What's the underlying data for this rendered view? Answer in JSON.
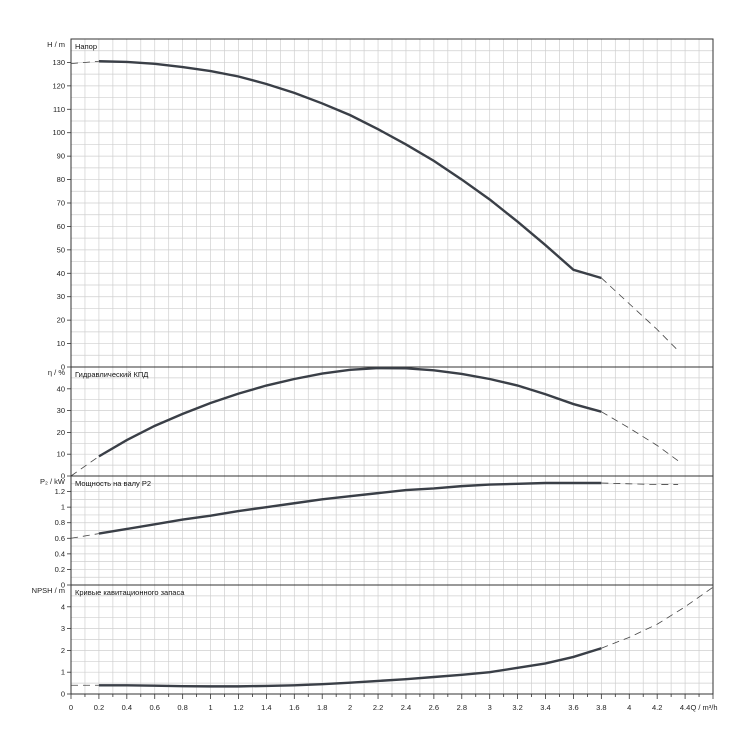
{
  "x_axis": {
    "label": "Q / m³/h"
  },
  "chart_data": [
    {
      "type": "line",
      "title": "Напор",
      "ylabel": "H / m",
      "xlim": [
        0,
        4.6
      ],
      "ylim": [
        0,
        140
      ],
      "xticks": [
        0,
        0.2,
        0.4,
        0.6,
        0.8,
        1,
        1.2,
        1.4,
        1.6,
        1.8,
        2,
        2.2,
        2.4,
        2.6,
        2.8,
        3,
        3.2,
        3.4,
        3.6,
        3.8,
        4,
        4.2,
        4.4
      ],
      "yticks": [
        0,
        10,
        20,
        30,
        40,
        50,
        60,
        70,
        80,
        90,
        100,
        110,
        120,
        130
      ],
      "grid": true,
      "series": [
        {
          "style": "solid",
          "x": [
            0.2,
            0.4,
            0.6,
            0.8,
            1.0,
            1.2,
            1.4,
            1.6,
            1.8,
            2.0,
            2.2,
            2.4,
            2.6,
            2.8,
            3.0,
            3.2,
            3.4,
            3.6,
            3.8
          ],
          "y": [
            130.5,
            130.2,
            129.4,
            128.0,
            126.3,
            124.0,
            120.8,
            117.0,
            112.5,
            107.5,
            101.5,
            95.0,
            88.0,
            80.0,
            71.5,
            62.0,
            52.0,
            41.5,
            38.0
          ]
        },
        {
          "style": "dashed",
          "x": [
            0.0,
            0.2
          ],
          "y": [
            129.5,
            130.5
          ]
        },
        {
          "style": "dashed",
          "x": [
            3.8,
            4.0,
            4.2,
            4.35
          ],
          "y": [
            38.0,
            27.0,
            16.0,
            7.0
          ]
        }
      ]
    },
    {
      "type": "line",
      "title": "Гидравлический КПД",
      "ylabel": "η / %",
      "xlim": [
        0,
        4.6
      ],
      "ylim": [
        0,
        50
      ],
      "yticks": [
        0,
        10,
        20,
        30,
        40
      ],
      "grid": true,
      "series": [
        {
          "style": "solid",
          "x": [
            0.2,
            0.4,
            0.6,
            0.8,
            1.0,
            1.2,
            1.4,
            1.6,
            1.8,
            2.0,
            2.2,
            2.4,
            2.6,
            2.8,
            3.0,
            3.2,
            3.4,
            3.6,
            3.8
          ],
          "y": [
            9.0,
            16.5,
            23.0,
            28.5,
            33.5,
            37.8,
            41.5,
            44.5,
            47.0,
            48.7,
            49.5,
            49.4,
            48.5,
            46.8,
            44.5,
            41.5,
            37.5,
            33.0,
            29.5
          ]
        },
        {
          "style": "dashed",
          "x": [
            0.0,
            0.2
          ],
          "y": [
            0.0,
            9.0
          ]
        },
        {
          "style": "dashed",
          "x": [
            3.8,
            4.0,
            4.2,
            4.35
          ],
          "y": [
            29.5,
            22.0,
            14.0,
            7.0
          ]
        }
      ]
    },
    {
      "type": "line",
      "title": "Мощность на валу P2",
      "ylabel": "P₂ / kW",
      "xlim": [
        0,
        4.6
      ],
      "ylim": [
        0,
        1.4
      ],
      "yticks": [
        0,
        0.2,
        0.4,
        0.6,
        0.8,
        1,
        1.2
      ],
      "grid": true,
      "series": [
        {
          "style": "solid",
          "x": [
            0.2,
            0.4,
            0.6,
            0.8,
            1.0,
            1.2,
            1.4,
            1.6,
            1.8,
            2.0,
            2.2,
            2.4,
            2.6,
            2.8,
            3.0,
            3.2,
            3.4,
            3.6,
            3.8
          ],
          "y": [
            0.66,
            0.72,
            0.78,
            0.84,
            0.89,
            0.95,
            1.0,
            1.05,
            1.1,
            1.14,
            1.18,
            1.22,
            1.24,
            1.27,
            1.29,
            1.3,
            1.31,
            1.31,
            1.31
          ]
        },
        {
          "style": "dashed",
          "x": [
            0.0,
            0.2
          ],
          "y": [
            0.6,
            0.66
          ]
        },
        {
          "style": "dashed",
          "x": [
            3.8,
            4.0,
            4.2,
            4.35
          ],
          "y": [
            1.31,
            1.3,
            1.29,
            1.29
          ]
        }
      ]
    },
    {
      "type": "line",
      "title": "Кривые кавитационного запаса",
      "ylabel": "NPSH / m",
      "xlim": [
        0,
        4.6
      ],
      "ylim": [
        0,
        5
      ],
      "yticks": [
        0,
        1,
        2,
        3,
        4
      ],
      "grid": true,
      "series": [
        {
          "style": "solid",
          "x": [
            0.2,
            0.4,
            0.6,
            0.8,
            1.0,
            1.2,
            1.4,
            1.6,
            1.8,
            2.0,
            2.2,
            2.4,
            2.6,
            2.8,
            3.0,
            3.2,
            3.4,
            3.6,
            3.8
          ],
          "y": [
            0.4,
            0.4,
            0.38,
            0.36,
            0.35,
            0.35,
            0.37,
            0.4,
            0.45,
            0.52,
            0.6,
            0.68,
            0.78,
            0.88,
            1.0,
            1.2,
            1.4,
            1.7,
            2.1
          ]
        },
        {
          "style": "dashed",
          "x": [
            0.0,
            0.2
          ],
          "y": [
            0.4,
            0.4
          ]
        },
        {
          "style": "dashed",
          "x": [
            3.8,
            4.0,
            4.2,
            4.4,
            4.6
          ],
          "y": [
            2.1,
            2.6,
            3.2,
            4.0,
            4.9
          ]
        }
      ]
    }
  ]
}
